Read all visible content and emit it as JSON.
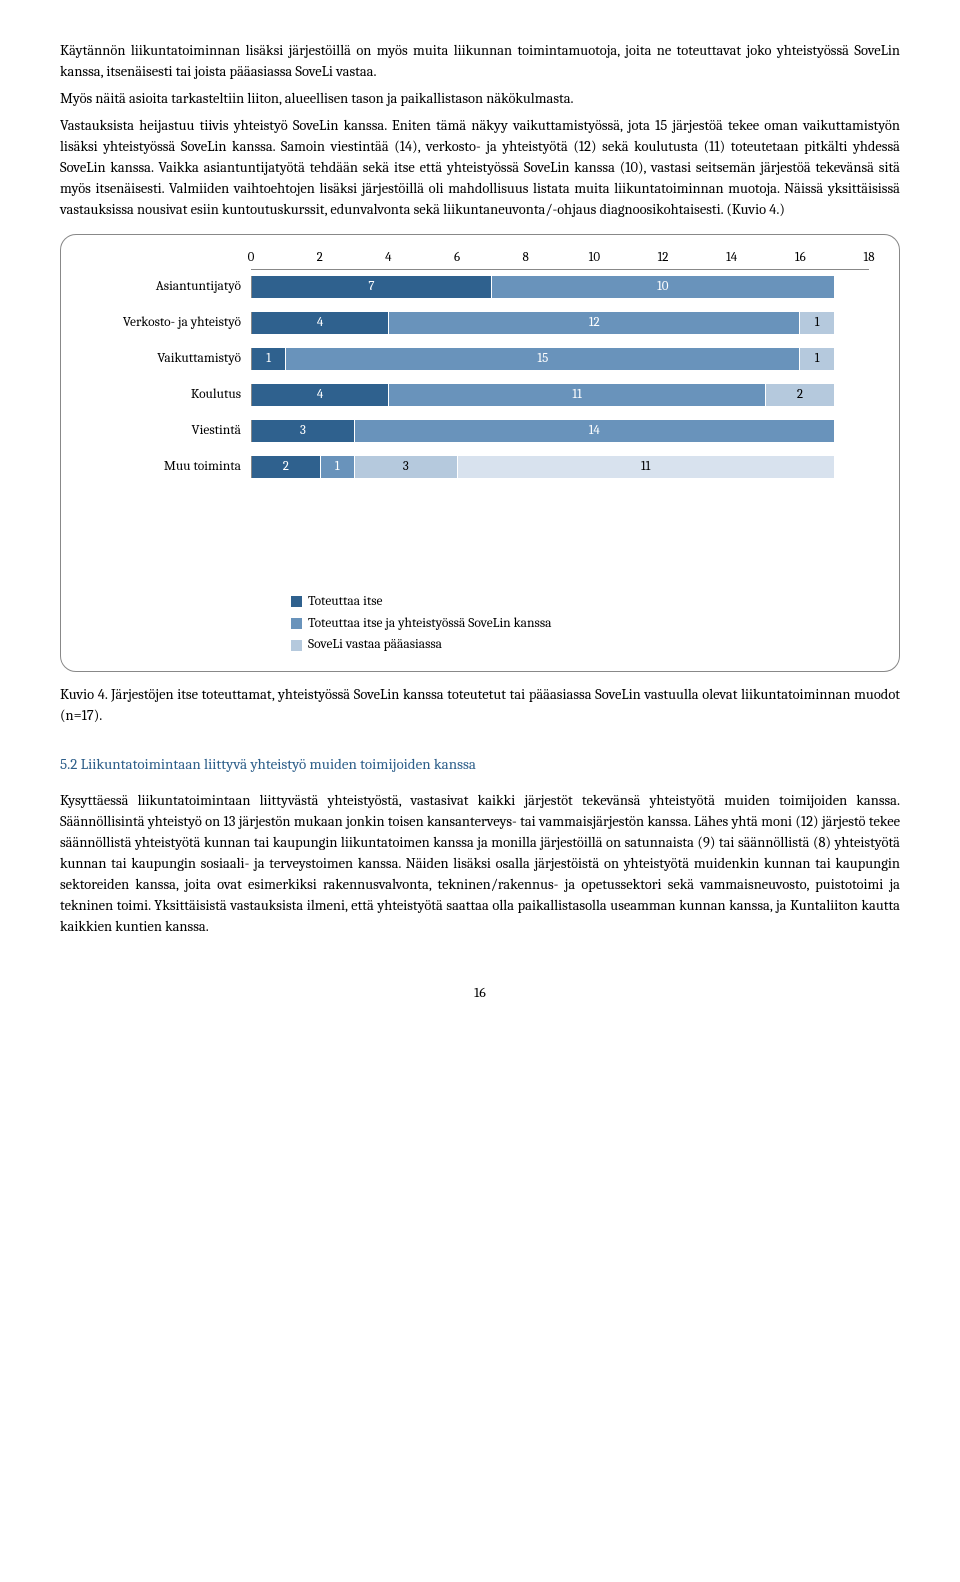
{
  "para1": "Käytännön liikuntatoiminnan lisäksi järjestöillä on myös muita liikunnan toimintamuotoja, joita ne toteuttavat joko yhteistyössä SoveLin kanssa, itsenäisesti tai joista pääasiassa SoveLi vastaa.",
  "para2": "Myös näitä asioita tarkasteltiin liiton, alueellisen tason ja paikallistason näkökulmasta.",
  "para3": "Vastauksista heijastuu tiivis yhteistyö SoveLin kanssa. Eniten tämä näkyy vaikuttamistyössä, jota 15 järjestöä tekee oman vaikuttamistyön lisäksi yhteistyössä SoveLin kanssa. Samoin viestintää (14), verkosto- ja yhteistyötä (12) sekä koulutusta (11) toteutetaan pitkälti yhdessä SoveLin kanssa. Vaikka asiantuntijatyötä tehdään sekä itse että yhteistyössä SoveLin kanssa (10), vastasi seitsemän järjestöä tekevänsä sitä myös itsenäisesti. Valmiiden vaihtoehtojen lisäksi järjestöillä oli mahdollisuus listata muita liikuntatoiminnan muotoja. Näissä yksittäisissä vastauksissa nousivat esiin kuntoutuskurssit, edunvalvonta sekä liikuntaneuvonta/-ohjaus diagnoosikohtaisesti. (Kuvio 4.)",
  "chart": {
    "xmax": 18,
    "ticks": [
      0,
      2,
      4,
      6,
      8,
      10,
      12,
      14,
      16,
      18
    ],
    "colors": {
      "c1": "#2f618e",
      "c2": "#6993bb",
      "c3": "#b5c9dd",
      "c4": "#d8e2ee"
    },
    "rows": [
      {
        "label": "Asiantuntijatyö",
        "segs": [
          {
            "v": 7,
            "c": "c1"
          },
          {
            "v": 10,
            "c": "c2"
          }
        ]
      },
      {
        "label": "Verkosto- ja yhteistyö",
        "segs": [
          {
            "v": 4,
            "c": "c1"
          },
          {
            "v": 12,
            "c": "c2"
          },
          {
            "v": 1,
            "c": "c3",
            "dark": true
          }
        ]
      },
      {
        "label": "Vaikuttamistyö",
        "segs": [
          {
            "v": 1,
            "c": "c1"
          },
          {
            "v": 15,
            "c": "c2"
          },
          {
            "v": 1,
            "c": "c3",
            "dark": true
          }
        ]
      },
      {
        "label": "Koulutus",
        "segs": [
          {
            "v": 4,
            "c": "c1"
          },
          {
            "v": 11,
            "c": "c2"
          },
          {
            "v": 2,
            "c": "c3",
            "dark": true
          }
        ]
      },
      {
        "label": "Viestintä",
        "segs": [
          {
            "v": 3,
            "c": "c1"
          },
          {
            "v": 14,
            "c": "c2"
          }
        ]
      },
      {
        "label": "Muu toiminta",
        "segs": [
          {
            "v": 2,
            "c": "c1"
          },
          {
            "v": 1,
            "c": "c2"
          },
          {
            "v": 3,
            "c": "c3",
            "dark": true
          },
          {
            "v": 11,
            "c": "c4",
            "dark": true
          }
        ]
      }
    ],
    "legend": [
      {
        "c": "c1",
        "label": "Toteuttaa itse"
      },
      {
        "c": "c2",
        "label": "Toteuttaa itse ja yhteistyössä SoveLin kanssa"
      },
      {
        "c": "c3",
        "label": "SoveLi vastaa pääasiassa"
      }
    ]
  },
  "caption": "Kuvio 4. Järjestöjen itse toteuttamat, yhteistyössä SoveLin kanssa toteutetut tai pääasiassa SoveLin vastuulla olevat liikuntatoiminnan muodot (n=17).",
  "section_head": "5.2 Liikuntatoimintaan liittyvä yhteistyö muiden toimijoiden kanssa",
  "para4": "Kysyttäessä liikuntatoimintaan liittyvästä yhteistyöstä, vastasivat kaikki järjestöt tekevänsä yhteistyötä muiden toimijoiden kanssa. Säännöllisintä yhteistyö on 13 järjestön mukaan jonkin toisen kansanterveys- tai vammaisjärjestön kanssa. Lähes yhtä moni (12) järjestö tekee säännöllistä yhteistyötä kunnan tai kaupungin liikuntatoimen kanssa ja monilla järjestöillä on satunnaista (9) tai säännöllistä (8) yhteistyötä kunnan tai kaupungin sosiaali- ja terveystoimen kanssa. Näiden lisäksi osalla järjestöistä on yhteistyötä muidenkin kunnan tai kaupungin sektoreiden kanssa, joita ovat esimerkiksi rakennusvalvonta, tekninen/rakennus- ja opetussektori sekä vammaisneuvosto, puistotoimi ja tekninen toimi. Yksittäisistä vastauksista ilmeni, että yhteistyötä saattaa olla paikallistasolla useamman kunnan kanssa, ja Kuntaliiton kautta kaikkien kuntien kanssa.",
  "pagenum": "16"
}
